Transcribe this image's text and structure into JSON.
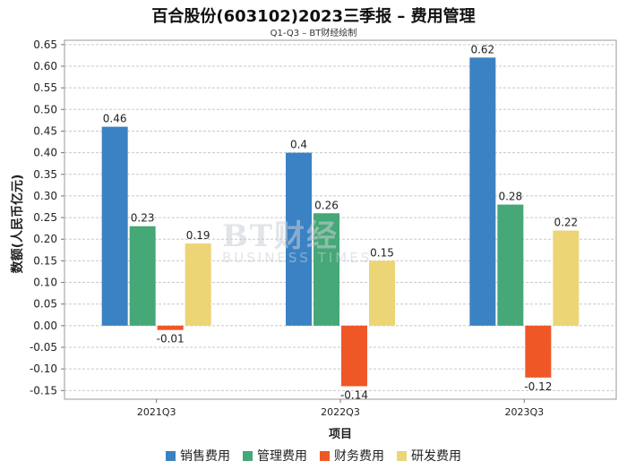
{
  "chart_data": {
    "type": "bar",
    "title": "百合股份(603102)2023三季报 – 费用管理",
    "subtitle": "Q1-Q3 – BT财经绘制",
    "xlabel": "项目",
    "ylabel": "数额(人民币亿元)",
    "ylim": [
      -0.17,
      0.66
    ],
    "yticks": [
      "0.65",
      "0.60",
      "0.55",
      "0.50",
      "0.45",
      "0.40",
      "0.35",
      "0.30",
      "0.25",
      "0.20",
      "0.15",
      "0.10",
      "0.05",
      "0.00",
      "-0.05",
      "-0.10",
      "-0.15"
    ],
    "categories": [
      "2021Q3",
      "2022Q3",
      "2023Q3"
    ],
    "series": [
      {
        "name": "销售费用",
        "color": "#3a82c3",
        "values": [
          0.46,
          0.4,
          0.62
        ],
        "labels": [
          "0.46",
          "0.4",
          "0.62"
        ]
      },
      {
        "name": "管理费用",
        "color": "#45a876",
        "values": [
          0.23,
          0.26,
          0.28
        ],
        "labels": [
          "0.23",
          "0.26",
          "0.28"
        ]
      },
      {
        "name": "财务费用",
        "color": "#ef5727",
        "values": [
          -0.01,
          -0.14,
          -0.12
        ],
        "labels": [
          "-0.01",
          "-0.14",
          "-0.12"
        ]
      },
      {
        "name": "研发费用",
        "color": "#ecd575",
        "values": [
          0.19,
          0.15,
          0.22
        ],
        "labels": [
          "0.19",
          "0.15",
          "0.22"
        ]
      }
    ],
    "grid": true,
    "legend": "bottom"
  },
  "watermark": {
    "main": "BT财经",
    "sub": "BUSINESS TIMES"
  }
}
